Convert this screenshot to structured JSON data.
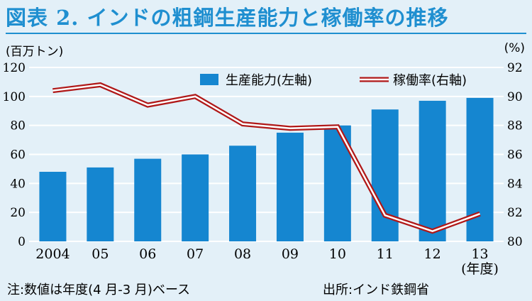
{
  "title": "図表 2. インドの粗鋼生産能力と稼働率の推移",
  "unit_left": "(百万トン)",
  "unit_right": "(%)",
  "footer_note": "注:数値は年度(4 月-3 月)ベース",
  "footer_source": "出所:インド鉄鋼省",
  "colors": {
    "bar": "#1586d0",
    "line": "#b01818",
    "grid": "#ffffff",
    "plot_bg": "#e3f0f8",
    "title": "#1f8fd0"
  },
  "chart_data": {
    "type": "bar+line",
    "categories": [
      "2004",
      "05",
      "06",
      "07",
      "08",
      "09",
      "10",
      "11",
      "12",
      "13"
    ],
    "x_suffix": "(年度)",
    "series": [
      {
        "name": "生産能力(左軸)",
        "type": "bar",
        "axis": "left",
        "values": [
          48,
          51,
          57,
          60,
          66,
          75,
          80,
          91,
          97,
          99
        ]
      },
      {
        "name": "稼働率(右軸)",
        "type": "line",
        "axis": "right",
        "values": [
          90.4,
          90.8,
          89.4,
          90.0,
          88.1,
          87.8,
          87.9,
          81.8,
          80.7,
          81.9
        ]
      }
    ],
    "y_left": {
      "min": 0,
      "max": 120,
      "ticks": [
        0,
        20,
        40,
        60,
        80,
        100,
        120
      ]
    },
    "y_right": {
      "min": 80,
      "max": 92,
      "ticks": [
        80,
        82,
        84,
        86,
        88,
        90,
        92
      ]
    },
    "grid": true,
    "legend_position": "top-right"
  }
}
